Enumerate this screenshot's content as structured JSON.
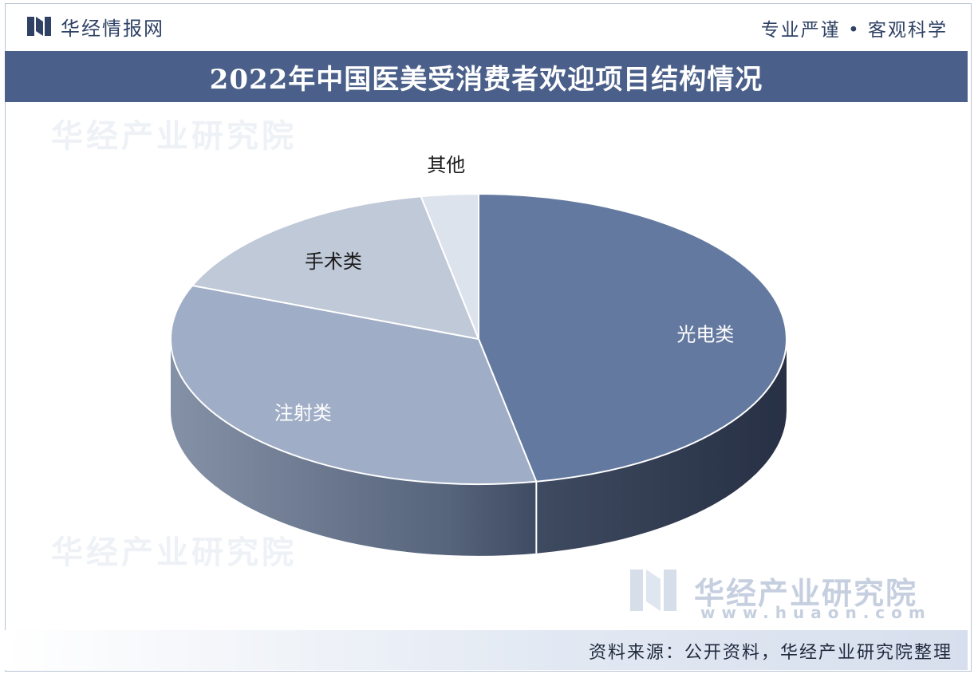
{
  "header": {
    "brand_name": "华经情报网",
    "slogan": "专业严谨 • 客观科学"
  },
  "chart_data": {
    "type": "pie",
    "title": "2022年中国医美受消费者欢迎项目结构情况",
    "categories": [
      "光电类",
      "注射类",
      "手术类",
      "其他"
    ],
    "values": [
      47,
      34,
      16,
      3
    ],
    "colors": [
      "#63799f",
      "#9fadc6",
      "#c0c9d8",
      "#dde3ec"
    ],
    "label_colors": [
      "#ffffff",
      "#ffffff",
      "#1a1a1a",
      "#1a1a1a"
    ]
  },
  "watermark": {
    "name": "华经产业研究院",
    "url": "www.huaon.com"
  },
  "footer": {
    "source": "资料来源：公开资料，华经产业研究院整理"
  }
}
